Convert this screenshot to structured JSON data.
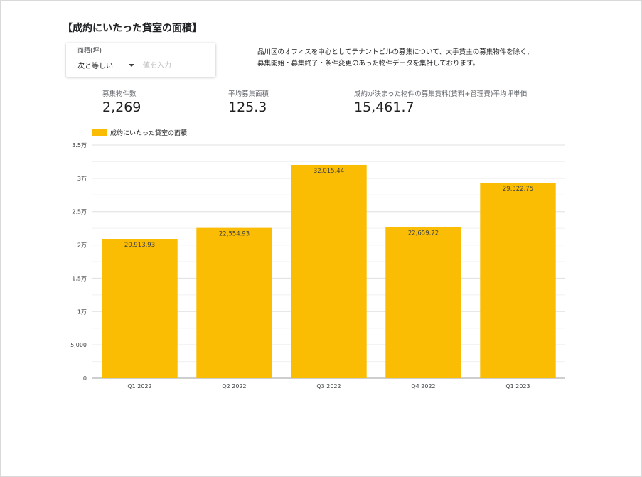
{
  "title": "【成約にいたった貸室の面積】",
  "filter": {
    "label": "面積(坪)",
    "operator": "次と等しい",
    "input_placeholder": "値を入力"
  },
  "description": [
    "品川区のオフィスを中心としてテナントビルの募集について、大手賃主の募集物件を除く、",
    "募集開始・募集終了・条件変更のあった物件データを集計しております。"
  ],
  "kpis": [
    {
      "label": "募集物件数",
      "value": "2,269"
    },
    {
      "label": "平均募集面積",
      "value": "125.3"
    },
    {
      "label": "成約が決まった物件の募集賃料(賃料+管理費)平均坪単価",
      "value": "15,461.7"
    }
  ],
  "colors": {
    "bar": "#fbbc04",
    "grid": "#e0e0e0",
    "axis": "#9e9e9e"
  },
  "chart_data": {
    "type": "bar",
    "categories": [
      "Q1 2022",
      "Q2 2022",
      "Q3 2022",
      "Q4 2022",
      "Q1 2023"
    ],
    "series": [
      {
        "name": "成約にいたった貸室の面積",
        "values": [
          20913.93,
          22554.93,
          32015.44,
          22659.72,
          29322.75
        ]
      }
    ],
    "data_labels": [
      "20,913.93",
      "22,554.93",
      "32,015.44",
      "22,659.72",
      "29,322.75"
    ],
    "y_ticks": [
      {
        "value": 0,
        "label": "0"
      },
      {
        "value": 5000,
        "label": "5,000"
      },
      {
        "value": 10000,
        "label": "1万"
      },
      {
        "value": 15000,
        "label": "1.5万"
      },
      {
        "value": 20000,
        "label": "2万"
      },
      {
        "value": 25000,
        "label": "2.5万"
      },
      {
        "value": 30000,
        "label": "3万"
      },
      {
        "value": 35000,
        "label": "3.5万"
      }
    ],
    "ylim": [
      0,
      35000
    ],
    "grid": true,
    "legend_position": "top-left"
  }
}
